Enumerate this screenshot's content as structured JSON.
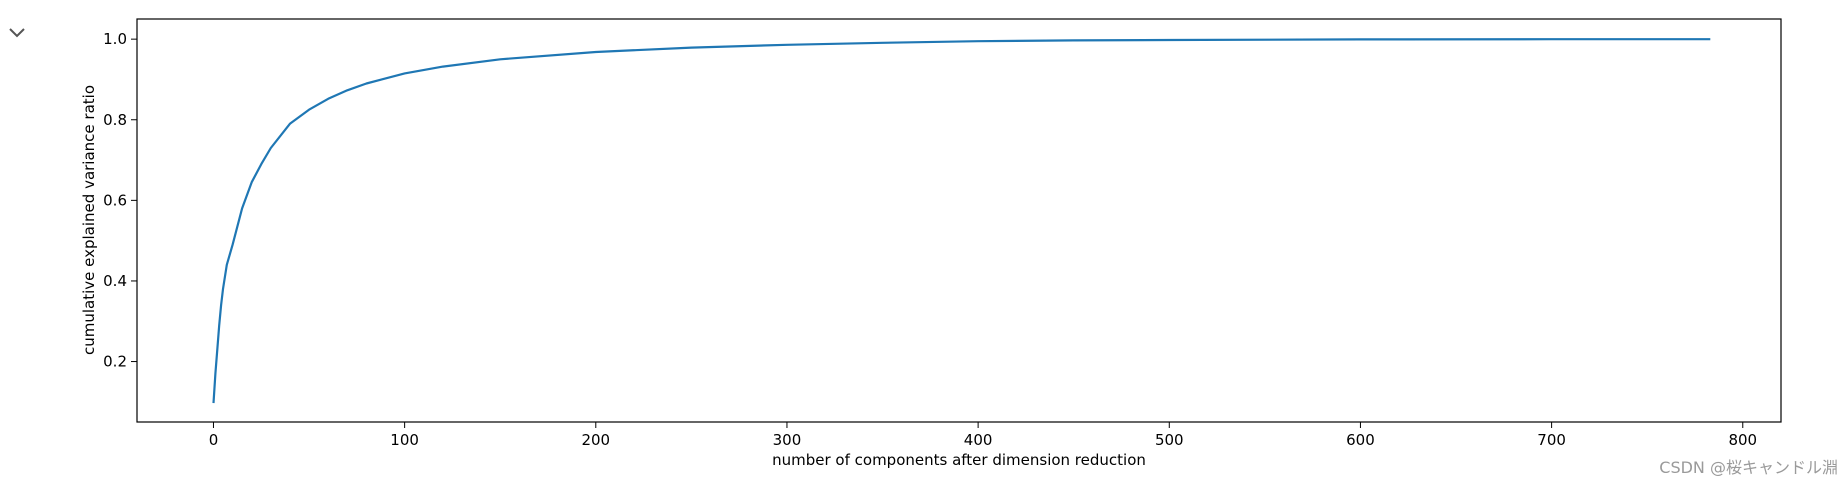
{
  "ui": {
    "collapse_icon": "chevron-down-icon",
    "watermark": "CSDN @桜キャンドル淵"
  },
  "chart_data": {
    "type": "line",
    "title": "",
    "xlabel": "number of components after dimension reduction",
    "ylabel": "cumulative explained variance ratio",
    "xlim": [
      -40,
      820
    ],
    "ylim": [
      0.05,
      1.05
    ],
    "x_ticks": [
      0,
      100,
      200,
      300,
      400,
      500,
      600,
      700,
      800
    ],
    "x_tick_labels": [
      "0",
      "100",
      "200",
      "300",
      "400",
      "500",
      "600",
      "700",
      "800"
    ],
    "y_ticks": [
      0.2,
      0.4,
      0.6,
      0.8,
      1.0
    ],
    "y_tick_labels": [
      "0.2",
      "0.4",
      "0.6",
      "0.8",
      "1.0"
    ],
    "grid": false,
    "series": [
      {
        "color": "#1f77b4",
        "x": [
          0,
          1,
          2,
          3,
          4,
          5,
          7,
          10,
          15,
          20,
          25,
          30,
          40,
          50,
          60,
          70,
          80,
          100,
          120,
          150,
          200,
          250,
          300,
          350,
          400,
          450,
          500,
          600,
          700,
          783
        ],
        "y": [
          0.097,
          0.17,
          0.23,
          0.29,
          0.34,
          0.38,
          0.44,
          0.49,
          0.58,
          0.645,
          0.69,
          0.73,
          0.79,
          0.825,
          0.852,
          0.873,
          0.89,
          0.915,
          0.932,
          0.95,
          0.968,
          0.979,
          0.986,
          0.991,
          0.995,
          0.997,
          0.998,
          0.9995,
          0.9999,
          1.0
        ]
      }
    ]
  }
}
